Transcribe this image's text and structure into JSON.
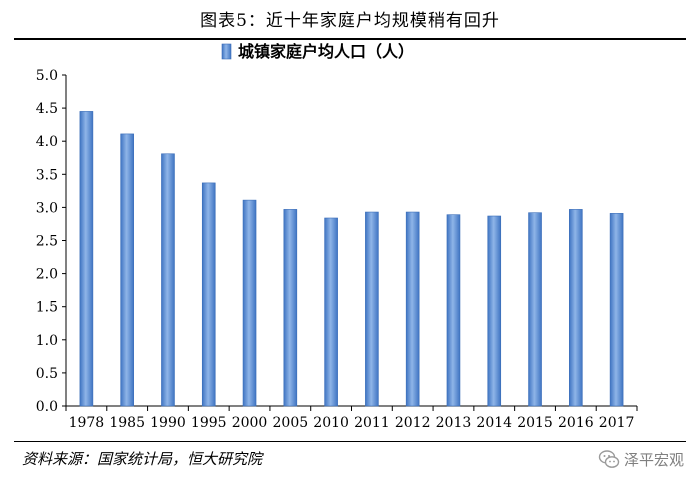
{
  "figure": {
    "title": "图表5：近十年家庭户均规模稍有回升",
    "source": "资料来源：国家统计局，恒大研究院",
    "watermark": "泽平宏观"
  },
  "chart_data": {
    "type": "bar",
    "categories": [
      "1978",
      "1985",
      "1990",
      "1995",
      "2000",
      "2005",
      "2010",
      "2011",
      "2012",
      "2013",
      "2014",
      "2015",
      "2016",
      "2017"
    ],
    "series": [
      {
        "name": "城镇家庭户均人口（人）",
        "values": [
          4.45,
          4.11,
          3.81,
          3.37,
          3.11,
          2.97,
          2.84,
          2.93,
          2.93,
          2.89,
          2.87,
          2.92,
          2.97,
          2.91
        ]
      }
    ],
    "ylim": [
      0,
      5.0
    ],
    "yticks": [
      "0.0",
      "0.5",
      "1.0",
      "1.5",
      "2.0",
      "2.5",
      "3.0",
      "3.5",
      "4.0",
      "4.5",
      "5.0"
    ],
    "legend_position": "top-center",
    "grid": false,
    "bar_color": "#5b8fd6"
  }
}
